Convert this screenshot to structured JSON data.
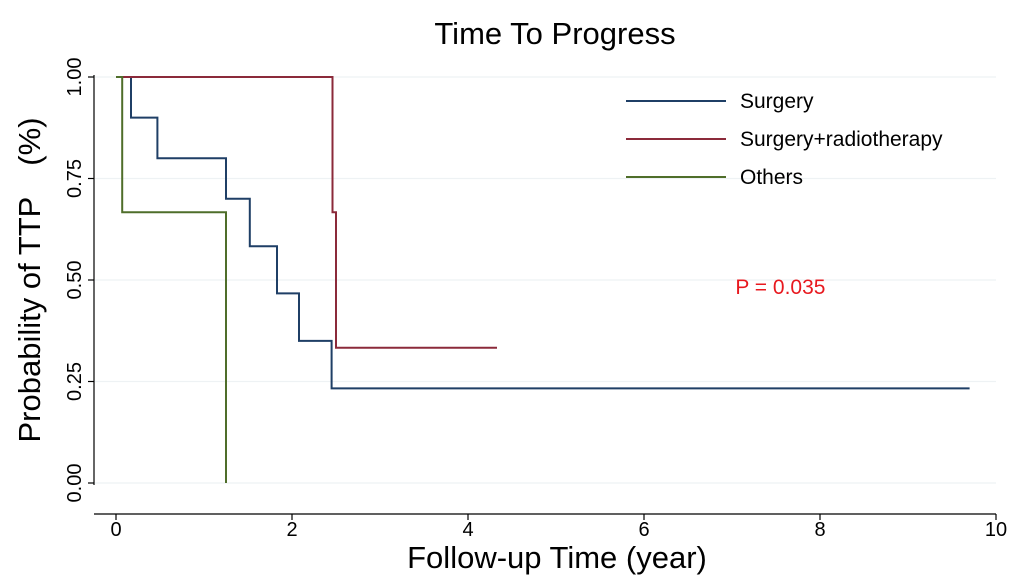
{
  "chart_data": {
    "type": "line",
    "title": "Time To Progress",
    "xlabel": "Follow-up Time (year)",
    "ylabel": "Probability of TTP (%)",
    "xlim": [
      0,
      10
    ],
    "ylim": [
      0,
      1
    ],
    "x_ticks": [
      "0",
      "2",
      "4",
      "6",
      "8",
      "10"
    ],
    "y_ticks": [
      "0.00",
      "0.25",
      "0.50",
      "0.75",
      "1.00"
    ],
    "grid": true,
    "legend_position": "top-right",
    "step": true,
    "series": [
      {
        "name": "Surgery",
        "color": "#1f3f66",
        "points": [
          [
            0,
            1.0
          ],
          [
            0.17,
            1.0
          ],
          [
            0.17,
            0.9
          ],
          [
            0.47,
            0.9
          ],
          [
            0.47,
            0.8
          ],
          [
            1.25,
            0.8
          ],
          [
            1.25,
            0.7
          ],
          [
            1.52,
            0.7
          ],
          [
            1.52,
            0.583
          ],
          [
            1.83,
            0.583
          ],
          [
            1.83,
            0.467
          ],
          [
            2.08,
            0.467
          ],
          [
            2.08,
            0.35
          ],
          [
            2.45,
            0.35
          ],
          [
            2.45,
            0.233
          ],
          [
            9.7,
            0.233
          ]
        ]
      },
      {
        "name": "Surgery+radiotherapy",
        "color": "#8b2a3a",
        "points": [
          [
            0,
            1.0
          ],
          [
            2.46,
            1.0
          ],
          [
            2.46,
            0.667
          ],
          [
            2.5,
            0.667
          ],
          [
            2.5,
            0.333
          ],
          [
            4.33,
            0.333
          ]
        ]
      },
      {
        "name": "Others",
        "color": "#4f6e2a",
        "points": [
          [
            0,
            1.0
          ],
          [
            0.07,
            1.0
          ],
          [
            0.07,
            0.667
          ],
          [
            1.25,
            0.667
          ],
          [
            1.25,
            0.0
          ]
        ]
      }
    ],
    "annotations": [
      {
        "text": "P = 0.035",
        "x": 7.55,
        "y": 0.465,
        "color": "#e8191f"
      }
    ]
  }
}
